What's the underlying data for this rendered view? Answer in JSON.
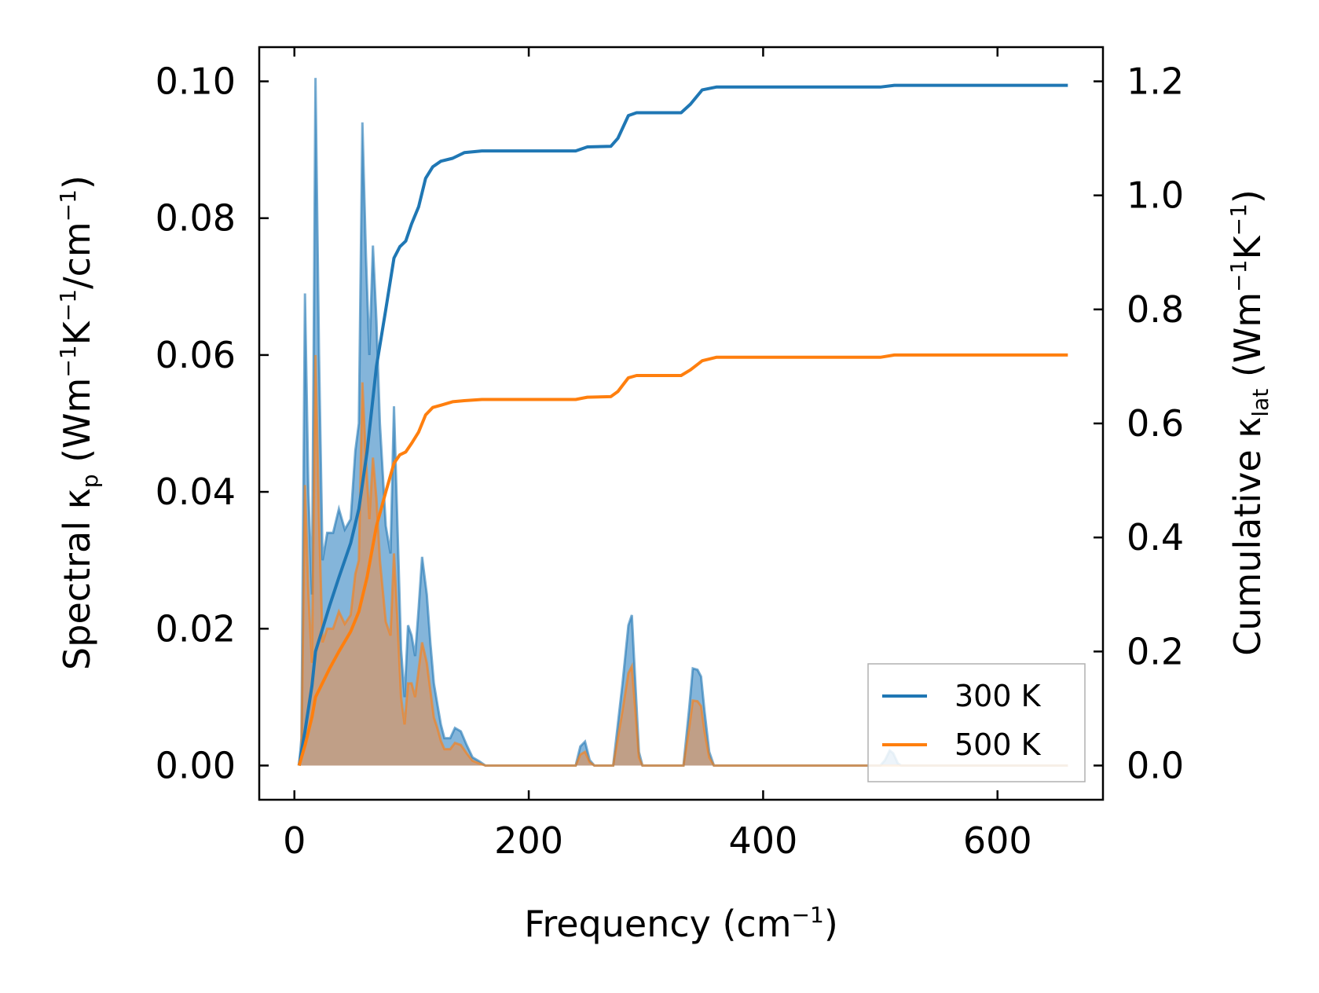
{
  "chart_data": {
    "type": "area",
    "xlabel": {
      "main": "Frequency (cm",
      "sup": "−1",
      "end": ")"
    },
    "ylabel_left": {
      "a": "Spectral κ",
      "sub": "p",
      "b": " (Wm",
      "s1": "−1",
      "c": "K",
      "s2": "−1",
      "d": "/cm",
      "s3": "−1",
      "e": ")"
    },
    "ylabel_right": {
      "a": "Cumulative κ",
      "sub": "lat",
      "b": " (Wm",
      "s1": "−1",
      "c": "K",
      "s2": "−1",
      "d": ")"
    },
    "xlim": [
      -30,
      690
    ],
    "ylim_left": [
      -0.005,
      0.105
    ],
    "ylim_right": [
      -0.06,
      1.26
    ],
    "x_ticks": [
      0,
      200,
      400,
      600
    ],
    "x_tick_labels": [
      "0",
      "200",
      "400",
      "600"
    ],
    "y_left_ticks": [
      0,
      0.02,
      0.04,
      0.06,
      0.08,
      0.1
    ],
    "y_left_tick_labels": [
      "0.00",
      "0.02",
      "0.04",
      "0.06",
      "0.08",
      "0.10"
    ],
    "y_right_ticks": [
      0,
      0.2,
      0.4,
      0.6,
      0.8,
      1.0,
      1.2
    ],
    "y_right_tick_labels": [
      "0.0",
      "0.2",
      "0.4",
      "0.6",
      "0.8",
      "1.0",
      "1.2"
    ],
    "grid": false,
    "legend_position": "lower-right",
    "colors": {
      "s300": "#1f77b4",
      "s500": "#ff7f0e",
      "fill300": "#6fa8d4",
      "fill500": "#cf9a72"
    },
    "series": [
      {
        "name": "300 K",
        "color": "#1f77b4",
        "spectral": [
          [
            4,
            0
          ],
          [
            6,
            0.004
          ],
          [
            9,
            0.069
          ],
          [
            12,
            0.04
          ],
          [
            15,
            0.025
          ],
          [
            18,
            0.1005
          ],
          [
            21,
            0.06
          ],
          [
            24,
            0.03
          ],
          [
            28,
            0.034
          ],
          [
            33,
            0.034
          ],
          [
            38,
            0.0375
          ],
          [
            43,
            0.0345
          ],
          [
            48,
            0.036
          ],
          [
            52,
            0.046
          ],
          [
            55,
            0.05
          ],
          [
            58,
            0.094
          ],
          [
            61,
            0.075
          ],
          [
            64,
            0.06
          ],
          [
            67,
            0.076
          ],
          [
            70,
            0.065
          ],
          [
            73,
            0.05
          ],
          [
            78,
            0.035
          ],
          [
            82,
            0.031
          ],
          [
            85,
            0.0525
          ],
          [
            88,
            0.035
          ],
          [
            91,
            0.017
          ],
          [
            94,
            0.01
          ],
          [
            97,
            0.0205
          ],
          [
            100,
            0.019
          ],
          [
            103,
            0.016
          ],
          [
            106,
            0.023
          ],
          [
            109,
            0.0305
          ],
          [
            113,
            0.025
          ],
          [
            116,
            0.018
          ],
          [
            119,
            0.012
          ],
          [
            122,
            0.009
          ],
          [
            125,
            0.006
          ],
          [
            128,
            0.004
          ],
          [
            133,
            0.004
          ],
          [
            137,
            0.0055
          ],
          [
            142,
            0.005
          ],
          [
            147,
            0.003
          ],
          [
            152,
            0.0012
          ],
          [
            158,
            0.0006
          ],
          [
            163,
            0
          ],
          [
            240,
            0
          ],
          [
            244,
            0.0028
          ],
          [
            248,
            0.0035
          ],
          [
            252,
            0.0008
          ],
          [
            256,
            0
          ],
          [
            272,
            0
          ],
          [
            280,
            0.012
          ],
          [
            285,
            0.0205
          ],
          [
            288,
            0.022
          ],
          [
            291,
            0.012
          ],
          [
            294,
            0.002
          ],
          [
            297,
            0
          ],
          [
            332,
            0
          ],
          [
            337,
            0.0085
          ],
          [
            340,
            0.0142
          ],
          [
            344,
            0.014
          ],
          [
            347,
            0.013
          ],
          [
            350,
            0.008
          ],
          [
            354,
            0.002
          ],
          [
            358,
            0
          ],
          [
            500,
            0
          ],
          [
            504,
            0.0008
          ],
          [
            508,
            0.0022
          ],
          [
            511,
            0.0018
          ],
          [
            515,
            0.0003
          ],
          [
            518,
            0
          ],
          [
            640,
            0
          ],
          [
            660,
            0
          ]
        ],
        "cumulative": [
          [
            4,
            0
          ],
          [
            9,
            0.06
          ],
          [
            15,
            0.14
          ],
          [
            18,
            0.2
          ],
          [
            24,
            0.24
          ],
          [
            30,
            0.28
          ],
          [
            38,
            0.33
          ],
          [
            48,
            0.39
          ],
          [
            55,
            0.45
          ],
          [
            62,
            0.55
          ],
          [
            70,
            0.7
          ],
          [
            78,
            0.8
          ],
          [
            85,
            0.89
          ],
          [
            90,
            0.91
          ],
          [
            95,
            0.92
          ],
          [
            100,
            0.95
          ],
          [
            106,
            0.98
          ],
          [
            112,
            1.03
          ],
          [
            118,
            1.05
          ],
          [
            125,
            1.06
          ],
          [
            135,
            1.065
          ],
          [
            145,
            1.075
          ],
          [
            160,
            1.078
          ],
          [
            200,
            1.078
          ],
          [
            240,
            1.078
          ],
          [
            250,
            1.085
          ],
          [
            270,
            1.086
          ],
          [
            276,
            1.1
          ],
          [
            285,
            1.14
          ],
          [
            292,
            1.145
          ],
          [
            300,
            1.145
          ],
          [
            330,
            1.145
          ],
          [
            338,
            1.16
          ],
          [
            348,
            1.185
          ],
          [
            360,
            1.19
          ],
          [
            500,
            1.19
          ],
          [
            512,
            1.193
          ],
          [
            660,
            1.193
          ]
        ]
      },
      {
        "name": "500 K",
        "color": "#ff7f0e",
        "spectral": [
          [
            4,
            0
          ],
          [
            6,
            0.002
          ],
          [
            9,
            0.041
          ],
          [
            12,
            0.025
          ],
          [
            15,
            0.015
          ],
          [
            18,
            0.06
          ],
          [
            21,
            0.036
          ],
          [
            24,
            0.018
          ],
          [
            28,
            0.02
          ],
          [
            33,
            0.02
          ],
          [
            38,
            0.0225
          ],
          [
            43,
            0.0207
          ],
          [
            48,
            0.022
          ],
          [
            52,
            0.028
          ],
          [
            55,
            0.03
          ],
          [
            58,
            0.056
          ],
          [
            61,
            0.045
          ],
          [
            64,
            0.036
          ],
          [
            67,
            0.045
          ],
          [
            70,
            0.039
          ],
          [
            73,
            0.03
          ],
          [
            78,
            0.021
          ],
          [
            82,
            0.019
          ],
          [
            85,
            0.031
          ],
          [
            88,
            0.021
          ],
          [
            91,
            0.01
          ],
          [
            94,
            0.006
          ],
          [
            97,
            0.012
          ],
          [
            100,
            0.012
          ],
          [
            103,
            0.01
          ],
          [
            106,
            0.014
          ],
          [
            109,
            0.018
          ],
          [
            113,
            0.015
          ],
          [
            116,
            0.011
          ],
          [
            119,
            0.007
          ],
          [
            122,
            0.0055
          ],
          [
            125,
            0.0036
          ],
          [
            128,
            0.0024
          ],
          [
            133,
            0.0024
          ],
          [
            137,
            0.0033
          ],
          [
            142,
            0.003
          ],
          [
            147,
            0.0018
          ],
          [
            152,
            0.0007
          ],
          [
            158,
            0.0003
          ],
          [
            163,
            0
          ],
          [
            240,
            0
          ],
          [
            244,
            0.0016
          ],
          [
            248,
            0.002
          ],
          [
            252,
            0.0005
          ],
          [
            256,
            0
          ],
          [
            272,
            0
          ],
          [
            280,
            0.008
          ],
          [
            285,
            0.0135
          ],
          [
            288,
            0.0145
          ],
          [
            291,
            0.008
          ],
          [
            294,
            0.0012
          ],
          [
            297,
            0
          ],
          [
            332,
            0
          ],
          [
            337,
            0.0056
          ],
          [
            340,
            0.0095
          ],
          [
            344,
            0.0094
          ],
          [
            347,
            0.0087
          ],
          [
            350,
            0.005
          ],
          [
            354,
            0.0012
          ],
          [
            358,
            0
          ],
          [
            660,
            0
          ]
        ],
        "cumulative": [
          [
            4,
            0
          ],
          [
            9,
            0.035
          ],
          [
            15,
            0.085
          ],
          [
            18,
            0.12
          ],
          [
            24,
            0.145
          ],
          [
            30,
            0.17
          ],
          [
            38,
            0.2
          ],
          [
            48,
            0.235
          ],
          [
            55,
            0.27
          ],
          [
            62,
            0.33
          ],
          [
            70,
            0.42
          ],
          [
            78,
            0.48
          ],
          [
            85,
            0.53
          ],
          [
            90,
            0.545
          ],
          [
            95,
            0.55
          ],
          [
            100,
            0.565
          ],
          [
            106,
            0.585
          ],
          [
            112,
            0.615
          ],
          [
            118,
            0.628
          ],
          [
            125,
            0.632
          ],
          [
            135,
            0.638
          ],
          [
            145,
            0.64
          ],
          [
            160,
            0.642
          ],
          [
            240,
            0.642
          ],
          [
            250,
            0.646
          ],
          [
            270,
            0.647
          ],
          [
            276,
            0.656
          ],
          [
            285,
            0.68
          ],
          [
            292,
            0.684
          ],
          [
            330,
            0.684
          ],
          [
            338,
            0.694
          ],
          [
            348,
            0.71
          ],
          [
            360,
            0.716
          ],
          [
            500,
            0.716
          ],
          [
            512,
            0.72
          ],
          [
            660,
            0.72
          ]
        ]
      }
    ]
  }
}
